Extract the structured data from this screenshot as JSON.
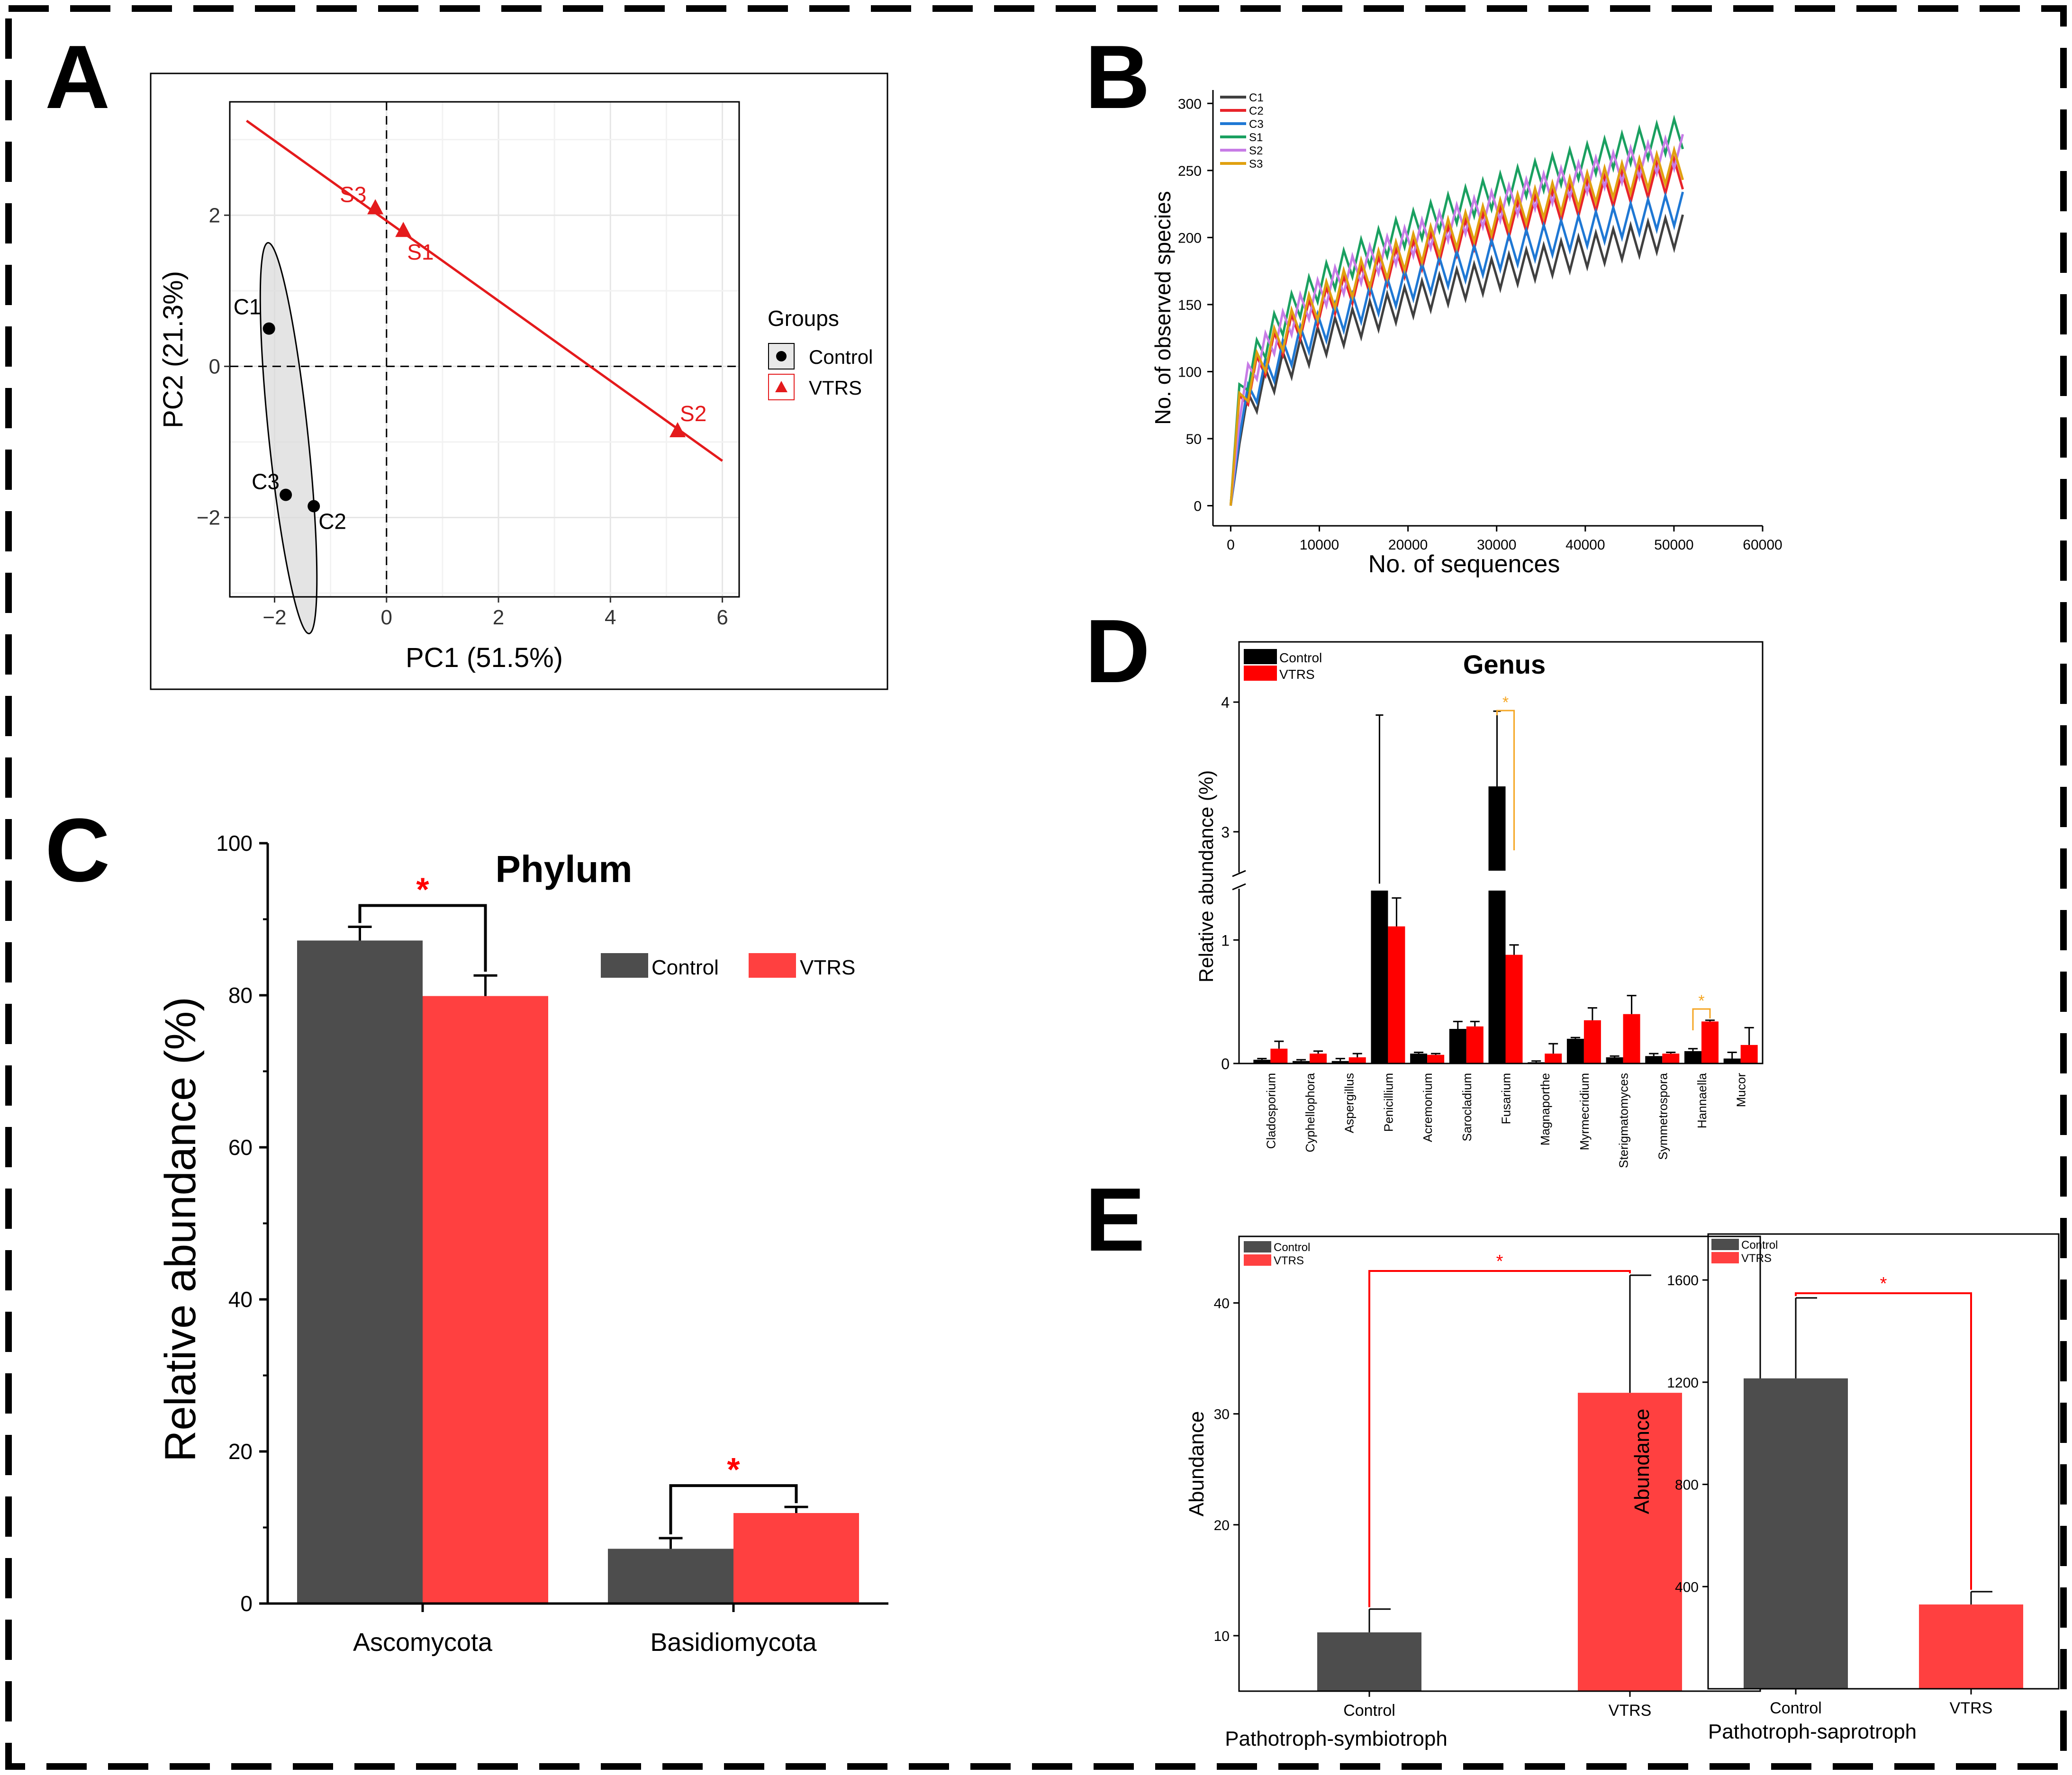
{
  "panel_letters": [
    "A",
    "B",
    "C",
    "D",
    "E"
  ],
  "chart_data": [
    {
      "id": "A",
      "type": "scatter",
      "xlabel": "PC1 (51.5%)",
      "ylabel": "PC2 (21.3%)",
      "xlim": [
        -2.8,
        6.3
      ],
      "ylim": [
        -3.05,
        3.5
      ],
      "xticks": [
        -2,
        0,
        2,
        4,
        6
      ],
      "yticks": [
        -2,
        0,
        2
      ],
      "tick_labels_x": [
        "−2",
        "0",
        "2",
        "4",
        "6"
      ],
      "tick_labels_y": [
        "−2",
        "0",
        "2"
      ],
      "legend_title": "Groups",
      "legend": [
        "Control",
        "VTRS"
      ],
      "series": [
        {
          "name": "Control",
          "marker": "circle",
          "color": "#000000",
          "points": [
            {
              "label": "C1",
              "x": -2.1,
              "y": 0.5
            },
            {
              "label": "C2",
              "x": -1.3,
              "y": -1.85
            },
            {
              "label": "C3",
              "x": -1.8,
              "y": -1.7
            }
          ]
        },
        {
          "name": "VTRS",
          "marker": "triangle",
          "color": "#e41a1c",
          "points": [
            {
              "label": "S1",
              "x": 0.3,
              "y": 1.8
            },
            {
              "label": "S2",
              "x": 5.2,
              "y": -0.85
            },
            {
              "label": "S3",
              "x": -0.2,
              "y": 2.1
            }
          ]
        }
      ],
      "ellipse": {
        "group": "Control",
        "center": [
          -1.75,
          -0.95
        ],
        "rx": 0.35,
        "ry": 2.6,
        "angle_deg": -6
      },
      "ellipse_color": "#d9d9d9",
      "line": {
        "from": [
          -2.5,
          3.25
        ],
        "to": [
          6.0,
          -1.25
        ],
        "color": "#e41a1c"
      },
      "ref_lines": {
        "x": 0,
        "y": 0
      }
    },
    {
      "id": "B",
      "type": "line",
      "xlabel": "No. of sequences",
      "ylabel": "No. of observed species",
      "xlim": [
        -2000,
        60000
      ],
      "ylim": [
        -15,
        310
      ],
      "xticks": [
        0,
        10000,
        20000,
        30000,
        40000,
        50000,
        60000
      ],
      "yticks": [
        0,
        50,
        100,
        150,
        200,
        250,
        300
      ],
      "legend": [
        "C1",
        "C2",
        "C3",
        "S1",
        "S2",
        "S3"
      ],
      "series": [
        {
          "name": "C1",
          "color": "#404040",
          "final": 205
        },
        {
          "name": "C2",
          "color": "#e8232a",
          "final": 248
        },
        {
          "name": "C3",
          "color": "#1f78d4",
          "final": 222
        },
        {
          "name": "S1",
          "color": "#1aa060",
          "final": 278
        },
        {
          "name": "S2",
          "color": "#c77ce6",
          "final": 265
        },
        {
          "name": "S3",
          "color": "#e0a010",
          "final": 255
        }
      ]
    },
    {
      "id": "C",
      "type": "bar",
      "title": "Phylum",
      "ylabel": "Relative abundance (%)",
      "categories": [
        "Ascomycota",
        "Basidiomycota"
      ],
      "ylim": [
        0,
        100
      ],
      "yticks": [
        0,
        20,
        40,
        60,
        80,
        100
      ],
      "legend": [
        "Control",
        "VTRS"
      ],
      "series": [
        {
          "name": "Control",
          "color": "#4d4d4d",
          "values": [
            87.2,
            7.2
          ],
          "errors": [
            1.8,
            1.4
          ]
        },
        {
          "name": "VTRS",
          "color": "#ff4040",
          "values": [
            79.9,
            11.9
          ],
          "errors": [
            2.7,
            0.8
          ]
        }
      ],
      "significance": [
        "*",
        "*"
      ]
    },
    {
      "id": "D",
      "type": "bar",
      "title": "Genus",
      "ylabel": "Relative abundance (%)",
      "categories": [
        "Cladosporium",
        "Cyphellophora",
        "Aspergillus",
        "Penicillium",
        "Acremonium",
        "Sarocladium",
        "Fusarium",
        "Magnaporthe",
        "Myrmecridium",
        "Sterigmatomyces",
        "Symmetrospora",
        "Hannaella",
        "Mucor"
      ],
      "yticks": [
        0,
        1,
        3,
        4
      ],
      "axis_break": [
        1.4,
        2.7
      ],
      "legend": [
        "Control",
        "VTRS"
      ],
      "series": [
        {
          "name": "Control",
          "color": "#000000",
          "values": [
            0.03,
            0.02,
            0.02,
            2.6,
            0.08,
            0.28,
            3.35,
            0.01,
            0.2,
            0.05,
            0.06,
            0.1,
            0.04
          ],
          "errors": [
            0.01,
            0.01,
            0.02,
            1.3,
            0.01,
            0.06,
            0.58,
            0.01,
            0.01,
            0.01,
            0.02,
            0.02,
            0.05
          ]
        },
        {
          "name": "VTRS",
          "color": "#ff0000",
          "values": [
            0.12,
            0.08,
            0.05,
            1.11,
            0.07,
            0.3,
            0.88,
            0.08,
            0.35,
            0.4,
            0.08,
            0.34,
            0.15
          ],
          "errors": [
            0.06,
            0.02,
            0.03,
            0.23,
            0.01,
            0.04,
            0.08,
            0.08,
            0.1,
            0.15,
            0.01,
            0.01,
            0.14
          ]
        }
      ],
      "significance": [
        {
          "category": "Fusarium",
          "label": "*"
        },
        {
          "category": "Hannaella",
          "label": "*"
        }
      ]
    },
    {
      "id": "E1",
      "type": "bar",
      "xlabel": "Pathotroph-symbiotroph",
      "ylabel": "Abundance",
      "categories": [
        "Control",
        "VTRS"
      ],
      "values": [
        10.3,
        31.9
      ],
      "errors": [
        2.1,
        10.6
      ],
      "colors": [
        "#4d4d4d",
        "#ff4040"
      ],
      "ylim": [
        5,
        46
      ],
      "yticks": [
        10,
        20,
        30,
        40
      ],
      "legend": [
        "Control",
        "VTRS"
      ],
      "significance": "*"
    },
    {
      "id": "E2",
      "type": "bar",
      "xlabel": "Pathotroph-saprotroph",
      "ylabel": "Abundance",
      "categories": [
        "Control",
        "VTRS"
      ],
      "values": [
        1215,
        330
      ],
      "errors": [
        315,
        50
      ],
      "colors": [
        "#4d4d4d",
        "#ff4040"
      ],
      "ylim": [
        0,
        1780
      ],
      "yticks": [
        400,
        800,
        1200,
        1600
      ],
      "legend": [
        "Control",
        "VTRS"
      ],
      "significance": "*"
    }
  ]
}
